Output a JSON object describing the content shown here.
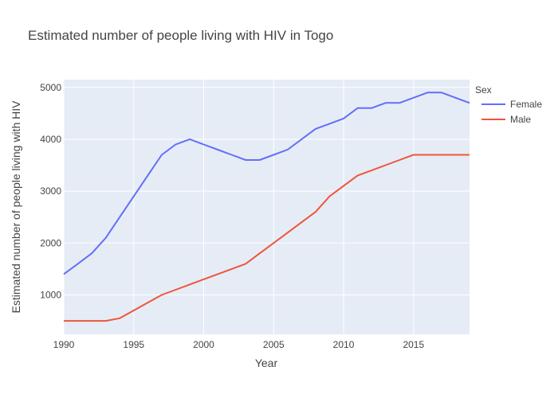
{
  "chart_data": {
    "type": "line",
    "title": "Estimated number of people living with HIV in Togo",
    "xlabel": "Year",
    "ylabel": "Estimated number of people living with HIV",
    "xlim": [
      1990,
      2019
    ],
    "ylim": [
      240,
      5150
    ],
    "xticks": [
      1990,
      1995,
      2000,
      2005,
      2010,
      2015
    ],
    "yticks": [
      1000,
      2000,
      3000,
      4000,
      5000
    ],
    "grid": true,
    "legend": {
      "title": "Sex",
      "placement": "top-right"
    },
    "x": [
      1990,
      1991,
      1992,
      1993,
      1994,
      1995,
      1996,
      1997,
      1998,
      1999,
      2000,
      2001,
      2002,
      2003,
      2004,
      2005,
      2006,
      2007,
      2008,
      2009,
      2010,
      2011,
      2012,
      2013,
      2014,
      2015,
      2016,
      2017,
      2018,
      2019
    ],
    "series": [
      {
        "name": "Female",
        "color": "#636efa",
        "values": [
          1400,
          1600,
          1800,
          2100,
          2500,
          2900,
          3300,
          3700,
          3900,
          4000,
          3900,
          3800,
          3700,
          3600,
          3600,
          3700,
          3800,
          4000,
          4200,
          4300,
          4400,
          4600,
          4600,
          4700,
          4700,
          4800,
          4900,
          4900,
          4800,
          4700
        ]
      },
      {
        "name": "Male",
        "color": "#ef553b",
        "values": [
          500,
          500,
          500,
          500,
          550,
          700,
          850,
          1000,
          1100,
          1200,
          1300,
          1400,
          1500,
          1600,
          1800,
          2000,
          2200,
          2400,
          2600,
          2900,
          3100,
          3300,
          3400,
          3500,
          3600,
          3700,
          3700,
          3700,
          3700,
          3700
        ]
      }
    ]
  }
}
